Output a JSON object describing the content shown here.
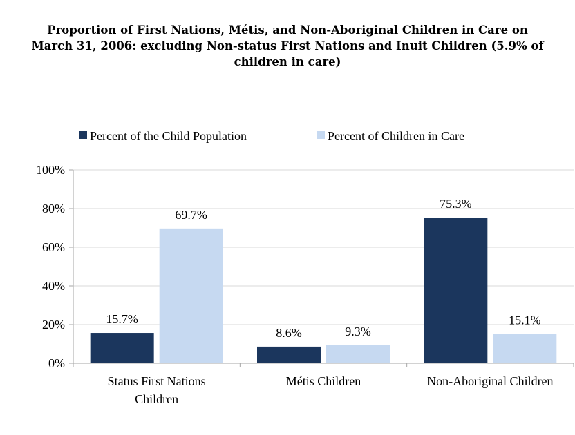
{
  "chart_data": {
    "type": "bar",
    "title": "Proportion of First Nations, Métis, and Non-Aboriginal Children in Care on March 31, 2006: excluding Non-status First Nations and Inuit Children (5.9% of children in care)",
    "title_lines": [
      "Proportion of First Nations, Métis, and Non-Aboriginal Children in Care on",
      "March 31, 2006: excluding Non-status First Nations and Inuit Children (5.9% of",
      "children in care)"
    ],
    "categories": [
      "Status First Nations Children",
      "Métis Children",
      "Non-Aboriginal Children"
    ],
    "category_lines": [
      [
        "Status First Nations",
        "Children"
      ],
      [
        "Métis Children"
      ],
      [
        "Non-Aboriginal Children"
      ]
    ],
    "series": [
      {
        "name": "Percent of the Child Population",
        "values": [
          15.7,
          8.6,
          75.3
        ],
        "labels": [
          "15.7%",
          "8.6%",
          "75.3%"
        ],
        "color": "#1b365d"
      },
      {
        "name": "Percent of Children in Care",
        "values": [
          69.7,
          9.3,
          15.1
        ],
        "labels": [
          "69.7%",
          "9.3%",
          "15.1%"
        ],
        "color": "#c6d9f1"
      }
    ],
    "ylim": [
      0,
      100
    ],
    "yticks": [
      0,
      20,
      40,
      60,
      80,
      100
    ],
    "ytick_labels": [
      "0%",
      "20%",
      "40%",
      "60%",
      "80%",
      "100%"
    ],
    "xlabel": "",
    "ylabel": "",
    "grid": true,
    "legend_position": "top"
  }
}
